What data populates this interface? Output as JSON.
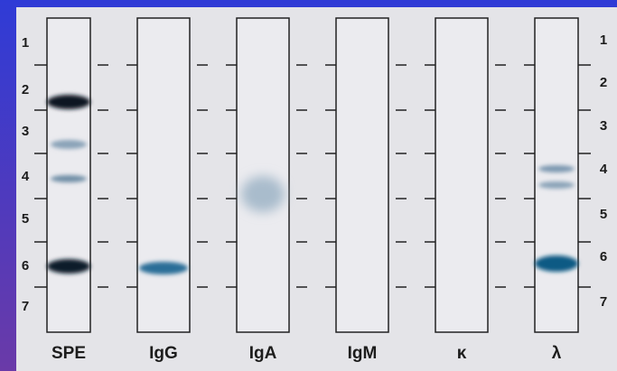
{
  "lanes": [
    "SPE",
    "IgG",
    "IgA",
    "IgM",
    "κ",
    "λ"
  ],
  "left_zones": [
    "1",
    "2",
    "3",
    "4",
    "5",
    "6",
    "7"
  ],
  "right_zones": [
    "1",
    "2",
    "3",
    "4",
    "5",
    "6",
    "7"
  ]
}
